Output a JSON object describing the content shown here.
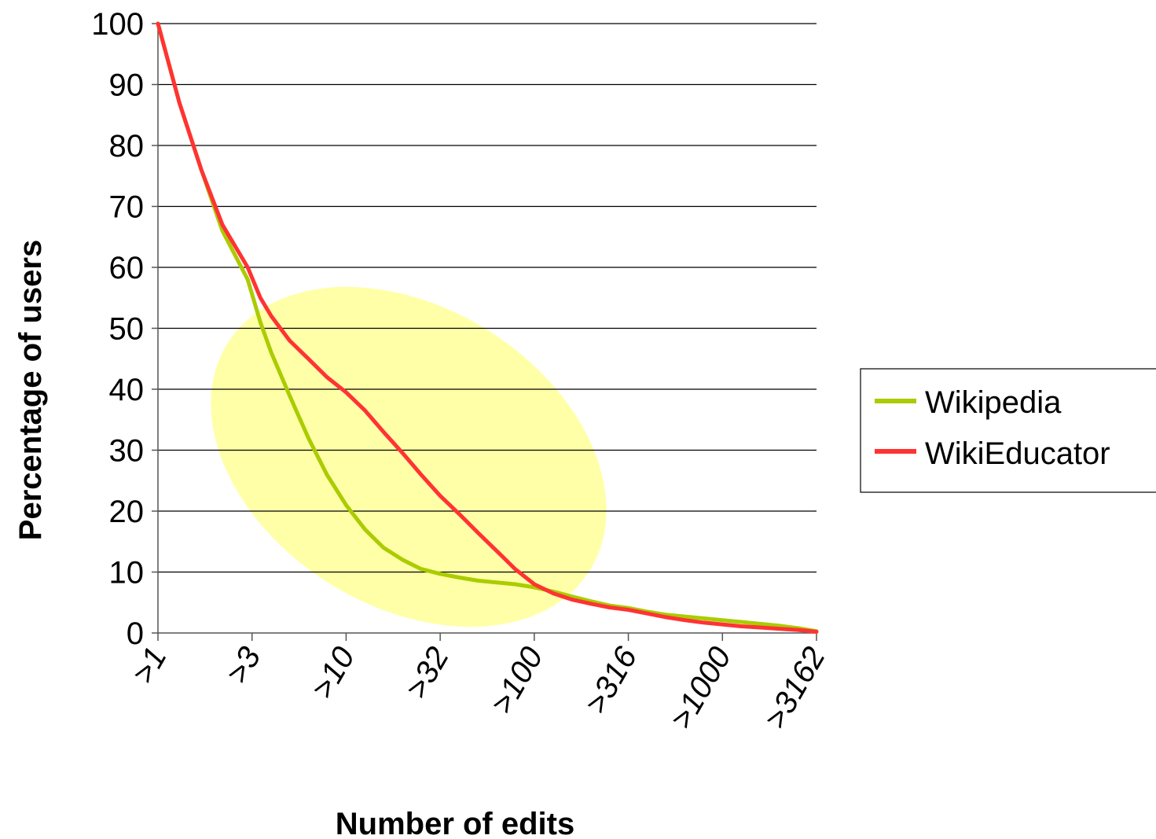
{
  "chart_data": {
    "type": "line",
    "xlabel": "Number of edits",
    "ylabel": "Percentage of users",
    "x_scale": "log",
    "categories": [
      ">1",
      ">3",
      ">10",
      ">32",
      ">100",
      ">316",
      ">1000",
      ">3162"
    ],
    "yticks": [
      "0",
      "10",
      "20",
      "30",
      "40",
      "50",
      "60",
      "70",
      "80",
      "90",
      "100"
    ],
    "ylim": [
      0,
      100
    ],
    "grid": "horizontal",
    "legend_position": "right",
    "highlight": "ellipse",
    "series": [
      {
        "name": "Wikipedia",
        "color": "#aacc00",
        "points": [
          [
            1,
            100
          ],
          [
            1.3,
            87
          ],
          [
            1.7,
            76
          ],
          [
            2.2,
            66
          ],
          [
            3,
            58
          ],
          [
            3.5,
            51
          ],
          [
            4,
            46
          ],
          [
            5,
            39
          ],
          [
            6.3,
            32
          ],
          [
            7.9,
            26
          ],
          [
            10,
            21
          ],
          [
            12.6,
            17
          ],
          [
            15.8,
            14
          ],
          [
            20,
            12
          ],
          [
            25,
            10.5
          ],
          [
            31.6,
            9.7
          ],
          [
            40,
            9.1
          ],
          [
            50,
            8.6
          ],
          [
            63,
            8.3
          ],
          [
            79,
            8
          ],
          [
            100,
            7.5
          ],
          [
            126,
            6.8
          ],
          [
            158,
            6
          ],
          [
            200,
            5.2
          ],
          [
            251,
            4.5
          ],
          [
            316,
            4.1
          ],
          [
            398,
            3.5
          ],
          [
            501,
            3
          ],
          [
            631,
            2.7
          ],
          [
            794,
            2.4
          ],
          [
            1000,
            2.1
          ],
          [
            1259,
            1.8
          ],
          [
            1585,
            1.5
          ],
          [
            1995,
            1.2
          ],
          [
            2512,
            0.8
          ],
          [
            3162,
            0.3
          ]
        ]
      },
      {
        "name": "WikiEducator",
        "color": "#ff3333",
        "points": [
          [
            1,
            100
          ],
          [
            1.3,
            87
          ],
          [
            1.7,
            76
          ],
          [
            2.2,
            67
          ],
          [
            3,
            60
          ],
          [
            3.5,
            55
          ],
          [
            4,
            52
          ],
          [
            5,
            48
          ],
          [
            6.3,
            45
          ],
          [
            7.9,
            42
          ],
          [
            10,
            39.5
          ],
          [
            12.6,
            36.5
          ],
          [
            15.8,
            33
          ],
          [
            20,
            29.5
          ],
          [
            25,
            26
          ],
          [
            31.6,
            22.5
          ],
          [
            40,
            19.5
          ],
          [
            50,
            16.5
          ],
          [
            63,
            13.5
          ],
          [
            79,
            10.5
          ],
          [
            100,
            8
          ],
          [
            126,
            6.5
          ],
          [
            158,
            5.5
          ],
          [
            200,
            4.8
          ],
          [
            251,
            4.2
          ],
          [
            316,
            3.8
          ],
          [
            398,
            3.2
          ],
          [
            501,
            2.6
          ],
          [
            631,
            2.1
          ],
          [
            794,
            1.7
          ],
          [
            1000,
            1.4
          ],
          [
            1259,
            1.1
          ],
          [
            1585,
            0.9
          ],
          [
            1995,
            0.7
          ],
          [
            2512,
            0.5
          ],
          [
            3162,
            0.2
          ]
        ]
      }
    ]
  }
}
